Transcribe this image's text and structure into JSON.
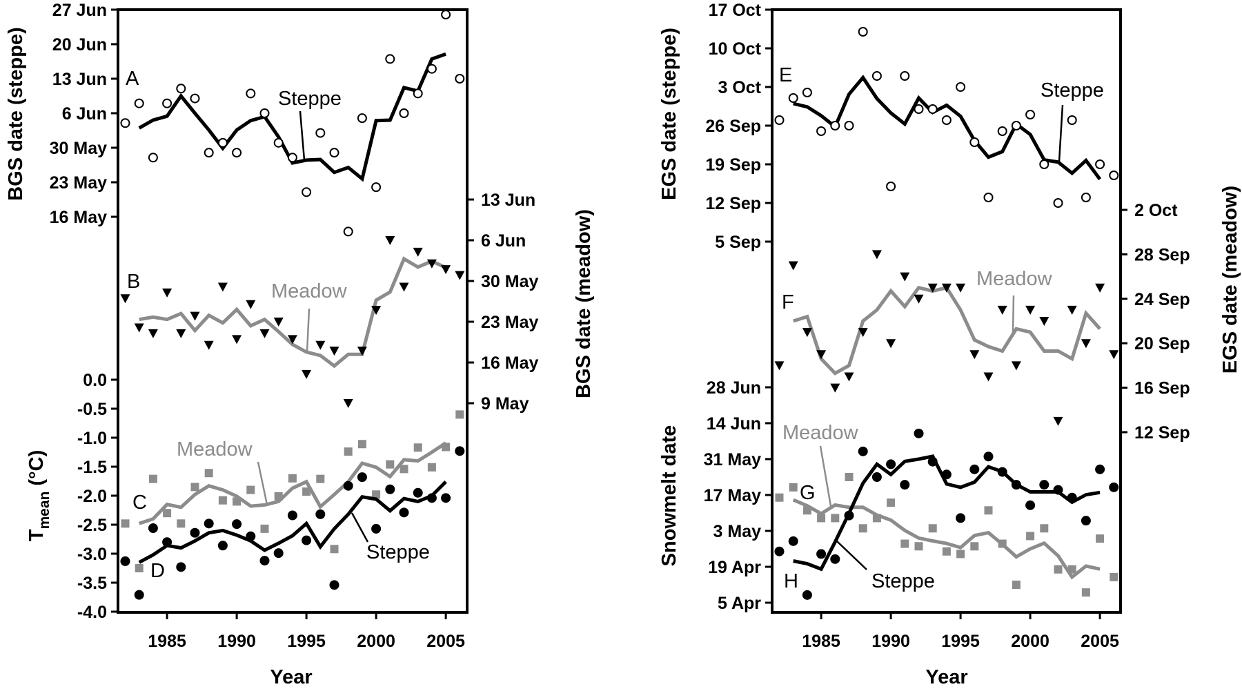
{
  "figure": {
    "colors": {
      "steppe": "#000000",
      "meadow": "#8c8c8c"
    },
    "xaxis": {
      "label": "Year",
      "ticks": [
        1985,
        1990,
        1995,
        2000,
        2005
      ],
      "range": [
        1981.5,
        2006.6
      ]
    }
  },
  "chart_data": [
    {
      "id": "left",
      "type": "scatter",
      "title": "",
      "xlabel": "Year",
      "x_ticks": [
        "1985",
        "1990",
        "1995",
        "2000",
        "2005"
      ],
      "years": [
        1982,
        1983,
        1984,
        1985,
        1986,
        1987,
        1988,
        1989,
        1990,
        1991,
        1992,
        1993,
        1994,
        1995,
        1996,
        1997,
        1998,
        1999,
        2000,
        2001,
        2002,
        2003,
        2004,
        2005,
        2006
      ],
      "line_years": [
        1983,
        1984,
        1985,
        1986,
        1987,
        1988,
        1989,
        1990,
        1991,
        1992,
        1993,
        1994,
        1995,
        1996,
        1997,
        1998,
        1999,
        2000,
        2001,
        2002,
        2003,
        2004,
        2005
      ],
      "axes": {
        "bgs_steppe": {
          "label": "BGS date (steppe)",
          "side": "left",
          "unit": "day-of-year",
          "ticks": [
            {
              "label": "27 Jun",
              "doy": 178
            },
            {
              "label": "20 Jun",
              "doy": 171
            },
            {
              "label": "13 Jun",
              "doy": 164
            },
            {
              "label": "6 Jun",
              "doy": 157
            },
            {
              "label": "30 May",
              "doy": 150
            },
            {
              "label": "23 May",
              "doy": 143
            },
            {
              "label": "16 May",
              "doy": 136
            }
          ]
        },
        "bgs_meadow": {
          "label": "BGS date (meadow)",
          "side": "right",
          "unit": "day-of-year",
          "ticks": [
            {
              "label": "13 Jun",
              "doy": 164
            },
            {
              "label": "6 Jun",
              "doy": 157
            },
            {
              "label": "30 May",
              "doy": 150
            },
            {
              "label": "23 May",
              "doy": 143
            },
            {
              "label": "16 May",
              "doy": 136
            },
            {
              "label": "9 May",
              "doy": 129
            }
          ]
        },
        "tmean": {
          "label_main": "T",
          "label_sub": "mean",
          "label_unit": " (°C)",
          "side": "left",
          "unit": "°C",
          "ticks": [
            {
              "label": "0.0",
              "v": 0
            },
            {
              "label": "-0.5",
              "v": -0.5
            },
            {
              "label": "-1.0",
              "v": -1
            },
            {
              "label": "-1.5",
              "v": -1.5
            },
            {
              "label": "-2.0",
              "v": -2
            },
            {
              "label": "-2.5",
              "v": -2.5
            },
            {
              "label": "-3.0",
              "v": -3
            },
            {
              "label": "-3.5",
              "v": -3.5
            },
            {
              "label": "-4.0",
              "v": -4
            }
          ]
        }
      },
      "panels": [
        {
          "letter": "A",
          "axis": "bgs_steppe",
          "site": "Steppe",
          "marker": "open-circle",
          "points": [
            155,
            159,
            148,
            159,
            162,
            160,
            149,
            151,
            149,
            161,
            157,
            151,
            148,
            141,
            153,
            149,
            133,
            156,
            142,
            168,
            157,
            161,
            166,
            177,
            164
          ],
          "line": [
            154,
            155.6,
            156.4,
            160.5,
            157,
            153.6,
            149.9,
            153.6,
            155.5,
            156.3,
            152.2,
            146.9,
            147.5,
            147.6,
            145,
            146,
            143.7,
            155.5,
            155.6,
            162.2,
            161.5,
            168,
            169
          ],
          "annotation": "Steppe"
        },
        {
          "letter": "B",
          "axis": "bgs_meadow",
          "site": "Meadow",
          "marker": "filled-down-triangle",
          "points": [
            147,
            142,
            141,
            148,
            141,
            144,
            139,
            149,
            140,
            146,
            141,
            143,
            140,
            134,
            139,
            138,
            129,
            138,
            145,
            157,
            149,
            155,
            153,
            152,
            151
          ],
          "line": [
            143.4,
            143.8,
            143.4,
            144.4,
            141.5,
            144.1,
            142.8,
            145.1,
            142.3,
            143.4,
            141.3,
            139.1,
            137.8,
            137.2,
            135.4,
            137.4,
            137.4,
            146.7,
            148.1,
            153.8,
            152.4,
            153.4,
            152.3
          ],
          "annotation": "Meadow"
        },
        {
          "letter": "C",
          "axis": "tmean",
          "site": "Meadow",
          "marker": "gray-square",
          "points": [
            -2.48,
            -3.25,
            -1.71,
            -2.3,
            -2.48,
            -1.85,
            -1.61,
            -2.08,
            -2.1,
            -1.9,
            -2.57,
            -2.01,
            -1.7,
            -1.93,
            -1.71,
            -2.92,
            -1.24,
            -1.11,
            -1.98,
            -1.46,
            -1.54,
            -1.17,
            -1.51,
            -1.16,
            -0.6
          ],
          "line": [
            -2.48,
            -2.4,
            -2.15,
            -2.2,
            -1.98,
            -1.83,
            -1.9,
            -2.01,
            -2.18,
            -2.16,
            -2.1,
            -1.87,
            -1.76,
            -2.19,
            -1.98,
            -1.76,
            -1.44,
            -1.51,
            -1.67,
            -1.38,
            -1.4,
            -1.25,
            -1.09
          ],
          "annotation": "Meadow"
        },
        {
          "letter": "D",
          "axis": "tmean",
          "site": "Steppe",
          "marker": "filled-circle",
          "points": [
            -3.13,
            -3.71,
            -2.56,
            -2.8,
            -3.23,
            -2.64,
            -2.48,
            -2.86,
            -2.49,
            -2.7,
            -3.12,
            -2.99,
            -2.34,
            -2.77,
            -2.32,
            -3.54,
            -1.83,
            -1.68,
            -2.57,
            -1.89,
            -2.29,
            -1.95,
            -2.04,
            -2.04,
            -1.23
          ],
          "line": [
            -3.15,
            -3.02,
            -2.86,
            -2.9,
            -2.78,
            -2.64,
            -2.6,
            -2.68,
            -2.78,
            -2.94,
            -2.82,
            -2.69,
            -2.48,
            -2.88,
            -2.57,
            -2.32,
            -2.02,
            -2.06,
            -2.26,
            -2.05,
            -2.1,
            -2.0,
            -1.76
          ],
          "annotation": "Steppe"
        }
      ]
    },
    {
      "id": "right",
      "type": "scatter",
      "title": "",
      "xlabel": "Year",
      "x_ticks": [
        "1985",
        "1990",
        "1995",
        "2000",
        "2005"
      ],
      "years": [
        1982,
        1983,
        1984,
        1985,
        1986,
        1987,
        1988,
        1989,
        1990,
        1991,
        1992,
        1993,
        1994,
        1995,
        1996,
        1997,
        1998,
        1999,
        2000,
        2001,
        2002,
        2003,
        2004,
        2005,
        2006
      ],
      "line_years": [
        1983,
        1984,
        1985,
        1986,
        1987,
        1988,
        1989,
        1990,
        1991,
        1992,
        1993,
        1994,
        1995,
        1996,
        1997,
        1998,
        1999,
        2000,
        2001,
        2002,
        2003,
        2004,
        2005
      ],
      "axes": {
        "egs_steppe": {
          "label": "EGS date (steppe)",
          "side": "left",
          "unit": "day-of-year",
          "ticks": [
            {
              "label": "17 Oct",
              "doy": 290
            },
            {
              "label": "10 Oct",
              "doy": 283
            },
            {
              "label": "3 Oct",
              "doy": 276
            },
            {
              "label": "26 Sep",
              "doy": 269
            },
            {
              "label": "19 Sep",
              "doy": 262
            },
            {
              "label": "12 Sep",
              "doy": 255
            },
            {
              "label": "5 Sep",
              "doy": 248
            }
          ]
        },
        "egs_meadow": {
          "label": "EGS date (meadow)",
          "side": "right",
          "unit": "day-of-year",
          "ticks": [
            {
              "label": "2 Oct",
              "doy": 275
            },
            {
              "label": "28 Sep",
              "doy": 271
            },
            {
              "label": "24 Sep",
              "doy": 267
            },
            {
              "label": "20 Sep",
              "doy": 263
            },
            {
              "label": "16 Sep",
              "doy": 259
            },
            {
              "label": "12 Sep",
              "doy": 255
            }
          ]
        },
        "snowmelt": {
          "label": "Snowmelt date",
          "side": "left",
          "unit": "day-of-year",
          "ticks": [
            {
              "label": "28 Jun",
              "doy": 179
            },
            {
              "label": "14 Jun",
              "doy": 165
            },
            {
              "label": "31 May",
              "doy": 151
            },
            {
              "label": "17 May",
              "doy": 137
            },
            {
              "label": "3 May",
              "doy": 123
            },
            {
              "label": "19 Apr",
              "doy": 109
            },
            {
              "label": "5 Apr",
              "doy": 95
            }
          ]
        }
      },
      "panels": [
        {
          "letter": "E",
          "axis": "egs_steppe",
          "site": "Steppe",
          "marker": "open-circle",
          "points": [
            270,
            274,
            275,
            268,
            269,
            269,
            286,
            278,
            258,
            278,
            272,
            272,
            270,
            276,
            266,
            256,
            268,
            269,
            271,
            262,
            255,
            270,
            256,
            262,
            260
          ],
          "line": [
            273,
            272.4,
            270.8,
            268.8,
            274.7,
            277.7,
            273.9,
            271.3,
            269.3,
            274,
            271.4,
            272.7,
            270.7,
            266.3,
            263.3,
            264.3,
            269.3,
            267.4,
            262.8,
            262.4,
            260.4,
            262.7,
            259.3
          ],
          "annotation": "Steppe"
        },
        {
          "letter": "F",
          "axis": "egs_meadow",
          "site": "Meadow",
          "marker": "filled-down-triangle",
          "points": [
            261,
            270,
            264,
            262,
            259,
            260,
            264,
            271,
            263,
            269,
            267,
            268,
            268,
            268,
            262,
            260,
            266,
            261,
            266,
            265,
            256,
            266,
            263,
            268,
            262
          ],
          "line": [
            265,
            265.4,
            261.6,
            260.3,
            261,
            265,
            266,
            267.7,
            266.3,
            268,
            267.7,
            268,
            266,
            263.3,
            262.7,
            262.3,
            264.3,
            264,
            262.3,
            262.3,
            261.6,
            265.7,
            264.3
          ],
          "annotation": "Meadow"
        },
        {
          "letter": "G",
          "axis": "snowmelt",
          "site": "Meadow",
          "marker": "gray-square",
          "points": [
            136,
            140,
            131,
            128,
            128,
            144,
            124,
            128,
            134,
            118,
            117,
            124,
            115,
            114,
            117,
            131,
            118,
            102,
            121,
            124,
            108,
            108,
            99,
            120,
            105
          ],
          "line": [
            135.1,
            132.8,
            129.7,
            133.1,
            132.2,
            132.2,
            129.2,
            127.2,
            123.2,
            120.2,
            119.1,
            118.1,
            116.5,
            121.2,
            122.3,
            117.8,
            112.9,
            116,
            118.2,
            113.3,
            105,
            109.3,
            108.1
          ],
          "annotation": "Meadow"
        },
        {
          "letter": "H",
          "axis": "snowmelt",
          "site": "Steppe",
          "marker": "filled-circle",
          "points": [
            115,
            119,
            98,
            114,
            112,
            129,
            154,
            144,
            149,
            141,
            161,
            150,
            145,
            128,
            147,
            152,
            146,
            141,
            133,
            141,
            139,
            136,
            127,
            147,
            140
          ],
          "line": [
            111.3,
            110.2,
            108.1,
            118.7,
            129.9,
            141.6,
            149,
            145,
            150.1,
            151,
            152.1,
            141.3,
            140,
            142,
            148,
            146.1,
            141.1,
            138.2,
            138.2,
            138.2,
            134.2,
            137.1,
            138
          ],
          "annotation": "Steppe"
        }
      ]
    }
  ]
}
